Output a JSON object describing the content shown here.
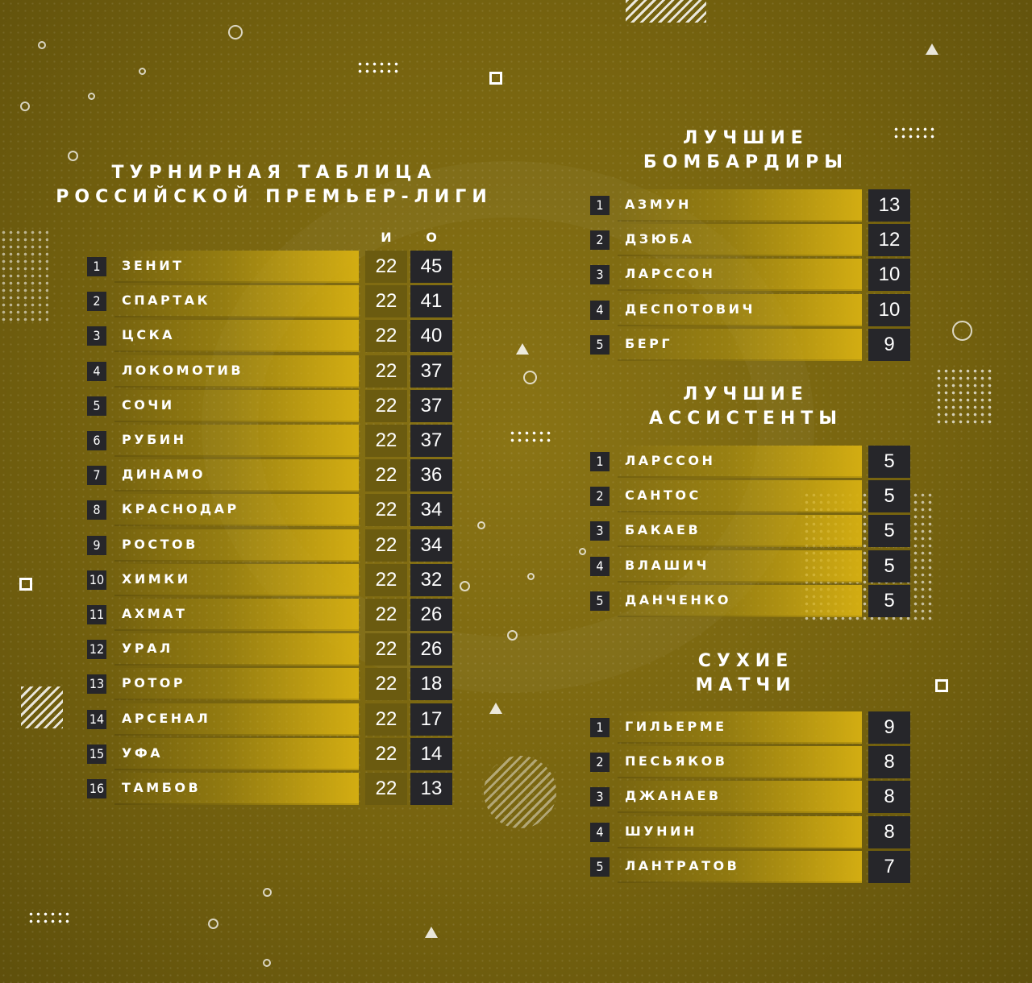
{
  "league_table": {
    "title_line1": "ТУРНИРНАЯ ТАБЛИЦА",
    "title_line2": "РОССИЙСКОЙ ПРЕМЬЕР-ЛИГИ",
    "col_games": "И",
    "col_points": "О",
    "rows": [
      {
        "pos": "1",
        "team": "ЗЕНИТ",
        "games": "22",
        "points": "45"
      },
      {
        "pos": "2",
        "team": "СПАРТАК",
        "games": "22",
        "points": "41"
      },
      {
        "pos": "3",
        "team": "ЦСКА",
        "games": "22",
        "points": "40"
      },
      {
        "pos": "4",
        "team": "ЛОКОМОТИВ",
        "games": "22",
        "points": "37"
      },
      {
        "pos": "5",
        "team": "СОЧИ",
        "games": "22",
        "points": "37"
      },
      {
        "pos": "6",
        "team": "РУБИН",
        "games": "22",
        "points": "37"
      },
      {
        "pos": "7",
        "team": "ДИНАМО",
        "games": "22",
        "points": "36"
      },
      {
        "pos": "8",
        "team": "КРАСНОДАР",
        "games": "22",
        "points": "34"
      },
      {
        "pos": "9",
        "team": "РОСТОВ",
        "games": "22",
        "points": "34"
      },
      {
        "pos": "10",
        "team": "ХИМКИ",
        "games": "22",
        "points": "32"
      },
      {
        "pos": "11",
        "team": "АХМАТ",
        "games": "22",
        "points": "26"
      },
      {
        "pos": "12",
        "team": "УРАЛ",
        "games": "22",
        "points": "26"
      },
      {
        "pos": "13",
        "team": "РОТОР",
        "games": "22",
        "points": "18"
      },
      {
        "pos": "14",
        "team": "АРСЕНАЛ",
        "games": "22",
        "points": "17"
      },
      {
        "pos": "15",
        "team": "УФА",
        "games": "22",
        "points": "14"
      },
      {
        "pos": "16",
        "team": "ТАМБОВ",
        "games": "22",
        "points": "13"
      }
    ]
  },
  "scorers": {
    "title_line1": "ЛУЧШИЕ",
    "title_line2": "БОМБАРДИРЫ",
    "rows": [
      {
        "pos": "1",
        "name": "АЗМУН",
        "value": "13"
      },
      {
        "pos": "2",
        "name": "ДЗЮБА",
        "value": "12"
      },
      {
        "pos": "3",
        "name": "ЛАРССОН",
        "value": "10"
      },
      {
        "pos": "4",
        "name": "ДЕСПОТОВИЧ",
        "value": "10"
      },
      {
        "pos": "5",
        "name": "БЕРГ",
        "value": "9"
      }
    ]
  },
  "assists": {
    "title_line1": "ЛУЧШИЕ",
    "title_line2": "АССИСТЕНТЫ",
    "rows": [
      {
        "pos": "1",
        "name": "ЛАРССОН",
        "value": "5"
      },
      {
        "pos": "2",
        "name": "САНТОС",
        "value": "5"
      },
      {
        "pos": "3",
        "name": "БАКАЕВ",
        "value": "5"
      },
      {
        "pos": "4",
        "name": "ВЛАШИЧ",
        "value": "5"
      },
      {
        "pos": "5",
        "name": "ДАНЧЕНКО",
        "value": "5"
      }
    ]
  },
  "clean_sheets": {
    "title_line1": "СУХИЕ",
    "title_line2": "МАТЧИ",
    "rows": [
      {
        "pos": "1",
        "name": "ГИЛЬЕРМЕ",
        "value": "9"
      },
      {
        "pos": "2",
        "name": "ПЕСЬЯКОВ",
        "value": "8"
      },
      {
        "pos": "3",
        "name": "ДЖАНАЕВ",
        "value": "8"
      },
      {
        "pos": "4",
        "name": "ШУНИН",
        "value": "8"
      },
      {
        "pos": "5",
        "name": "ЛАНТРАТОВ",
        "value": "7"
      }
    ]
  },
  "colors": {
    "background": "#76630f",
    "bar_gold": "#d3ad12",
    "cell_dark": "#26262a",
    "cell_olive": "#6b5b10"
  }
}
